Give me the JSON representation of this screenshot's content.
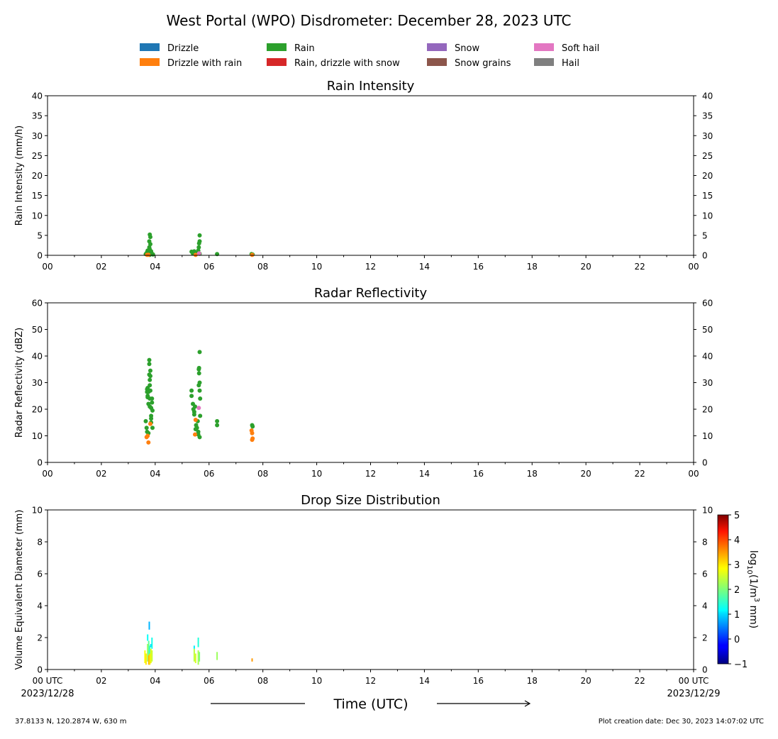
{
  "title": "West Portal (WPO) Disdrometer: December 28, 2023 UTC",
  "legend": [
    {
      "label": "Drizzle",
      "color": "#1f77b4"
    },
    {
      "label": "Drizzle with rain",
      "color": "#ff7f0e"
    },
    {
      "label": "Rain",
      "color": "#2ca02c"
    },
    {
      "label": "Rain, drizzle with snow",
      "color": "#d62728"
    },
    {
      "label": "Snow",
      "color": "#9467bd"
    },
    {
      "label": "Snow grains",
      "color": "#8c564b"
    },
    {
      "label": "Soft hail",
      "color": "#e377c2"
    },
    {
      "label": "Hail",
      "color": "#7f7f7f"
    }
  ],
  "x_tick_labels": [
    "00",
    "02",
    "04",
    "06",
    "08",
    "10",
    "12",
    "14",
    "16",
    "18",
    "20",
    "22",
    "00"
  ],
  "x_bottom_tick_labels": [
    "00 UTC",
    "02",
    "04",
    "06",
    "08",
    "10",
    "12",
    "14",
    "16",
    "18",
    "20",
    "22",
    "00 UTC"
  ],
  "date_start": "2023/12/28",
  "date_end": "2023/12/29",
  "xlabel": "Time (UTC)",
  "footer": {
    "location": "37.8133 N, 120.2874 W, 630 m",
    "created": "Plot creation date: Dec 30, 2023 14:07:02 UTC"
  },
  "colorbar": {
    "label_base": "log",
    "label_sub": "10",
    "label_mid": "(1/m",
    "label_sup": "3",
    "label_end": " mm)",
    "ticks": [
      "5",
      "4",
      "3",
      "2",
      "1",
      "0",
      "−1"
    ],
    "range": [
      -1,
      5
    ]
  },
  "chart_data": [
    {
      "type": "scatter",
      "title": "Rain Intensity",
      "ylabel": "Rain Intensity (mm/h)",
      "xlim": [
        0,
        24
      ],
      "ylim": [
        0,
        40
      ],
      "y_ticks": [
        "0",
        "5",
        "10",
        "15",
        "20",
        "25",
        "30",
        "35",
        "40"
      ],
      "series": [
        {
          "name": "Rain",
          "color": "#2ca02c",
          "x": [
            3.65,
            3.7,
            3.72,
            3.75,
            3.78,
            3.78,
            3.8,
            3.8,
            3.82,
            3.82,
            3.85,
            3.85,
            3.88,
            3.9,
            3.92,
            3.78,
            3.8,
            5.35,
            5.4,
            5.45,
            5.5,
            5.55,
            5.6,
            5.62,
            5.63,
            5.65,
            5.65,
            5.65,
            6.3,
            7.58,
            7.62
          ],
          "y": [
            0.3,
            0.8,
            1.2,
            0.5,
            2.0,
            3.5,
            5.2,
            1.5,
            4.6,
            2.8,
            0.6,
            1.0,
            0.4,
            0.3,
            0.2,
            0.2,
            0.1,
            0.9,
            0.5,
            1.0,
            0.3,
            0.6,
            1.2,
            2.0,
            3.0,
            3.5,
            5.0,
            0.4,
            0.3,
            0.3,
            0.2
          ]
        },
        {
          "name": "Drizzle with rain",
          "color": "#ff7f0e",
          "x": [
            3.7,
            3.75,
            5.5,
            7.6
          ],
          "y": [
            0.1,
            0.15,
            0.1,
            0.1
          ]
        },
        {
          "name": "Soft hail",
          "color": "#e377c2",
          "x": [
            5.63
          ],
          "y": [
            0.5
          ]
        }
      ]
    },
    {
      "type": "scatter",
      "title": "Radar Reflectivity",
      "ylabel": "Radar Reflectivity (dBZ)",
      "xlim": [
        0,
        24
      ],
      "ylim": [
        0,
        60
      ],
      "y_ticks": [
        "0",
        "10",
        "20",
        "30",
        "40",
        "50",
        "60"
      ],
      "series": [
        {
          "name": "Rain",
          "color": "#2ca02c",
          "x": [
            3.65,
            3.68,
            3.7,
            3.7,
            3.72,
            3.72,
            3.75,
            3.75,
            3.78,
            3.78,
            3.78,
            3.8,
            3.8,
            3.8,
            3.82,
            3.82,
            3.82,
            3.85,
            3.85,
            3.85,
            3.88,
            3.88,
            3.9,
            3.9,
            3.7,
            3.72,
            3.75,
            3.8,
            3.85,
            5.35,
            5.35,
            5.4,
            5.42,
            5.45,
            5.45,
            5.48,
            5.5,
            5.52,
            5.55,
            5.58,
            5.6,
            5.6,
            5.62,
            5.62,
            5.63,
            5.63,
            5.65,
            5.65,
            5.65,
            5.65,
            5.67,
            5.67,
            6.3,
            6.3,
            7.6,
            7.62
          ],
          "y": [
            15.5,
            13,
            11.5,
            27.5,
            25,
            28,
            22,
            26.5,
            37,
            38.5,
            33,
            31,
            29,
            24,
            34.5,
            32.5,
            27,
            20.5,
            17.5,
            15,
            24,
            22.5,
            13,
            19.5,
            26.5,
            24.5,
            11,
            21,
            16.5,
            27,
            25,
            22,
            20,
            18,
            19,
            21,
            12.5,
            14,
            13,
            15.5,
            10.5,
            11.5,
            29,
            35,
            35.5,
            33.5,
            41.5,
            30,
            27,
            9.5,
            24,
            17.5,
            15.5,
            14,
            14,
            13.5
          ]
        },
        {
          "name": "Drizzle with rain",
          "color": "#ff7f0e",
          "x": [
            3.68,
            3.72,
            3.75,
            3.82,
            5.48,
            5.5,
            7.58,
            7.6,
            7.6,
            7.62
          ],
          "y": [
            9.5,
            10,
            7.5,
            14.5,
            10.5,
            16,
            12,
            11,
            8.5,
            9
          ]
        },
        {
          "name": "Soft hail",
          "color": "#e377c2",
          "x": [
            5.62
          ],
          "y": [
            20.5
          ]
        }
      ]
    },
    {
      "type": "heatmap",
      "title": "Drop Size Distribution",
      "ylabel": "Volume Equivalent Diameter (mm)",
      "xlim": [
        0,
        24
      ],
      "ylim": [
        0,
        10
      ],
      "y_ticks": [
        "0",
        "2",
        "4",
        "6",
        "8",
        "10"
      ],
      "clim": [
        -1,
        5
      ],
      "cells": [
        {
          "x": 3.62,
          "y0": 0.4,
          "y1": 1.2,
          "v": 2.8
        },
        {
          "x": 3.66,
          "y0": 0.3,
          "y1": 1.0,
          "v": 3.0
        },
        {
          "x": 3.72,
          "y0": 0.5,
          "y1": 1.6,
          "v": 2.2
        },
        {
          "x": 3.72,
          "y0": 1.8,
          "y1": 2.2,
          "v": 1.2
        },
        {
          "x": 3.76,
          "y0": 0.3,
          "y1": 0.9,
          "v": 3.3
        },
        {
          "x": 3.76,
          "y0": 0.9,
          "y1": 1.8,
          "v": 1.8
        },
        {
          "x": 3.78,
          "y0": 2.5,
          "y1": 3.0,
          "v": 0.8
        },
        {
          "x": 3.8,
          "y0": 0.3,
          "y1": 1.0,
          "v": 3.1
        },
        {
          "x": 3.8,
          "y0": 1.0,
          "y1": 1.5,
          "v": 1.5
        },
        {
          "x": 3.84,
          "y0": 0.4,
          "y1": 1.3,
          "v": 2.7
        },
        {
          "x": 3.84,
          "y0": 1.4,
          "y1": 1.6,
          "v": 1.0
        },
        {
          "x": 3.88,
          "y0": 0.5,
          "y1": 1.2,
          "v": 2.5
        },
        {
          "x": 3.88,
          "y0": 1.3,
          "y1": 2.0,
          "v": 1.3
        },
        {
          "x": 5.45,
          "y0": 0.5,
          "y1": 1.3,
          "v": 2.4
        },
        {
          "x": 5.45,
          "y0": 1.3,
          "y1": 1.5,
          "v": 1.1
        },
        {
          "x": 5.5,
          "y0": 0.4,
          "y1": 1.0,
          "v": 2.6
        },
        {
          "x": 5.6,
          "y0": 0.3,
          "y1": 1.2,
          "v": 2.3
        },
        {
          "x": 5.6,
          "y0": 1.4,
          "y1": 2.0,
          "v": 1.4
        },
        {
          "x": 5.64,
          "y0": 0.5,
          "y1": 1.1,
          "v": 2.0
        },
        {
          "x": 6.3,
          "y0": 0.6,
          "y1": 1.1,
          "v": 2.2
        },
        {
          "x": 7.6,
          "y0": 0.5,
          "y1": 0.7,
          "v": 3.5
        }
      ]
    }
  ]
}
